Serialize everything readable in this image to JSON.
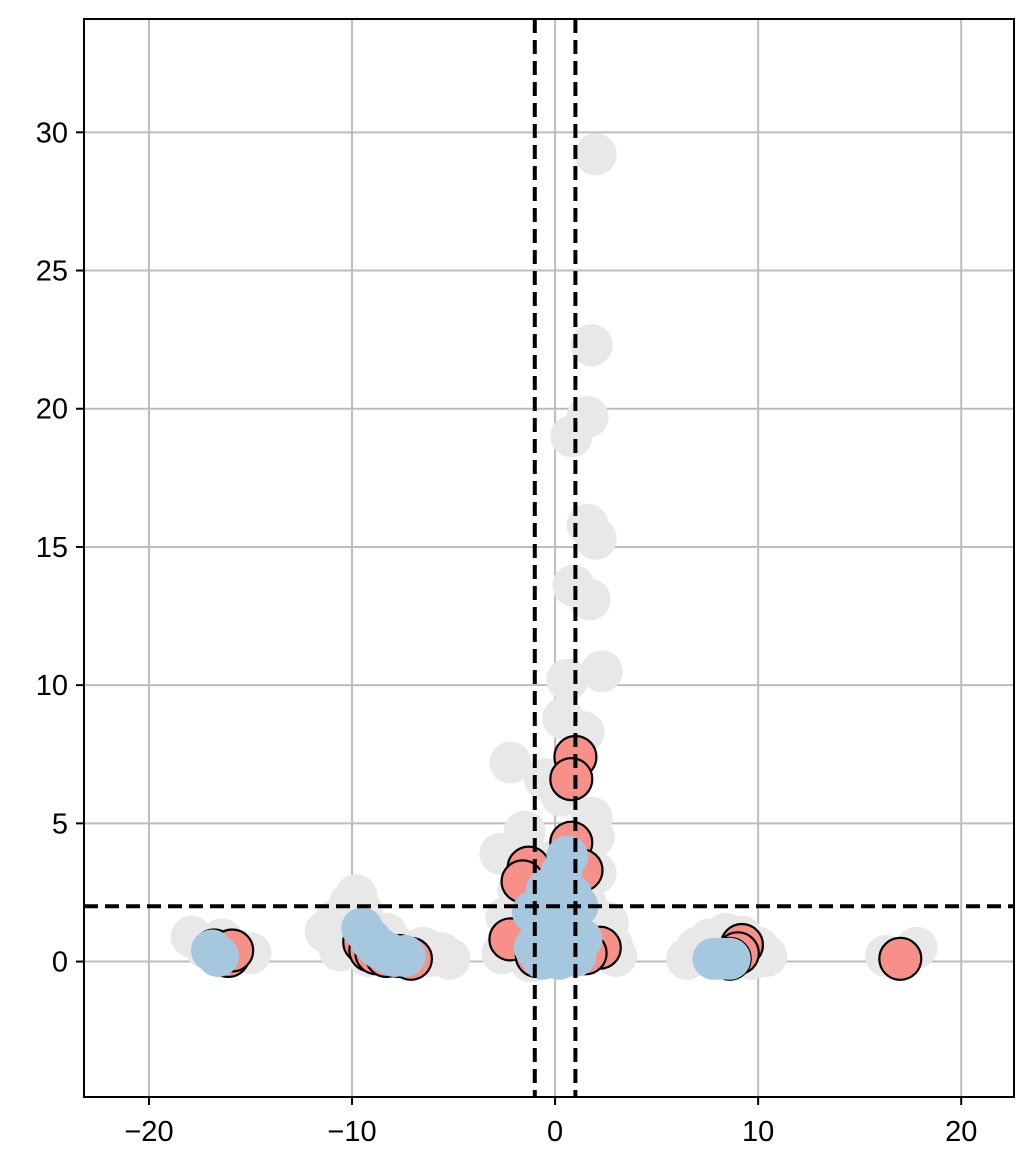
{
  "chart_data": {
    "type": "scatter",
    "title": "",
    "xlabel": "",
    "ylabel": "",
    "xlim": [
      -23.2,
      22.6
    ],
    "ylim": [
      -4.9,
      34.1
    ],
    "xticks": [
      -20,
      -10,
      0,
      10,
      20
    ],
    "yticks": [
      0,
      5,
      10,
      15,
      20,
      25,
      30
    ],
    "xtick_labels": [
      "−20",
      "−10",
      "0",
      "10",
      "20"
    ],
    "ytick_labels": [
      "0",
      "5",
      "10",
      "15",
      "20",
      "25",
      "30"
    ],
    "grid": true,
    "legend": "none",
    "threshold_lines": {
      "x": [
        -1,
        1
      ],
      "y": [
        2
      ]
    },
    "series": [
      {
        "color": "#e8e8e8",
        "outlined": false,
        "points": [
          [
            2.0,
            29.2
          ],
          [
            1.8,
            22.3
          ],
          [
            1.6,
            19.7
          ],
          [
            0.8,
            19.0
          ],
          [
            1.6,
            15.8
          ],
          [
            2.0,
            15.3
          ],
          [
            0.9,
            13.6
          ],
          [
            1.7,
            13.1
          ],
          [
            2.3,
            10.5
          ],
          [
            0.6,
            10.2
          ],
          [
            0.4,
            8.8
          ],
          [
            1.4,
            8.3
          ],
          [
            -2.2,
            7.2
          ],
          [
            -0.5,
            6.6
          ],
          [
            0.3,
            6.0
          ],
          [
            1.8,
            5.2
          ],
          [
            -1.5,
            4.7
          ],
          [
            0.7,
            4.2
          ],
          [
            1.9,
            4.5
          ],
          [
            -2.7,
            3.9
          ],
          [
            -0.3,
            3.6
          ],
          [
            2.0,
            3.2
          ],
          [
            -1.8,
            2.6
          ],
          [
            0.5,
            2.8
          ],
          [
            1.5,
            2.1
          ],
          [
            -2.4,
            1.6
          ],
          [
            2.6,
            1.4
          ],
          [
            -0.8,
            1.2
          ],
          [
            2.8,
            0.6
          ],
          [
            -2.6,
            0.3
          ],
          [
            3.0,
            0.2
          ],
          [
            -1.2,
            0.0
          ],
          [
            -10.1,
            2.1
          ],
          [
            -9.8,
            2.4
          ],
          [
            -11.3,
            1.1
          ],
          [
            -10.8,
            1.5
          ],
          [
            -9.5,
            1.8
          ],
          [
            -8.3,
            1.0
          ],
          [
            -7.9,
            0.6
          ],
          [
            -6.5,
            0.5
          ],
          [
            -6.1,
            0.2
          ],
          [
            -5.6,
            0.3
          ],
          [
            -5.2,
            0.1
          ],
          [
            -10.6,
            0.4
          ],
          [
            -9.2,
            0.2
          ],
          [
            -17.9,
            0.9
          ],
          [
            -17.2,
            0.5
          ],
          [
            -15.6,
            0.4
          ],
          [
            -15.0,
            0.3
          ],
          [
            -16.4,
            0.8
          ],
          [
            6.5,
            0.1
          ],
          [
            7.0,
            0.5
          ],
          [
            7.6,
            0.8
          ],
          [
            8.4,
            1.0
          ],
          [
            9.2,
            0.9
          ],
          [
            10.0,
            0.5
          ],
          [
            10.4,
            0.2
          ],
          [
            9.7,
            0.1
          ],
          [
            16.3,
            0.2
          ],
          [
            17.8,
            0.5
          ],
          [
            16.9,
            0.1
          ]
        ]
      },
      {
        "color": "#f8908a",
        "outlined": true,
        "points": [
          [
            1.0,
            7.4
          ],
          [
            0.8,
            6.6
          ],
          [
            0.8,
            4.3
          ],
          [
            -1.3,
            3.4
          ],
          [
            1.3,
            3.3
          ],
          [
            -1.6,
            2.9
          ],
          [
            -2.2,
            0.8
          ],
          [
            2.2,
            0.5
          ],
          [
            1.5,
            0.3
          ],
          [
            -0.9,
            0.2
          ],
          [
            -9.4,
            0.7
          ],
          [
            -9.1,
            0.4
          ],
          [
            -8.8,
            0.3
          ],
          [
            -8.3,
            0.2
          ],
          [
            -7.7,
            0.2
          ],
          [
            -7.1,
            0.1
          ],
          [
            -16.8,
            0.4
          ],
          [
            -16.4,
            0.3
          ],
          [
            -16.1,
            0.2
          ],
          [
            -15.9,
            0.4
          ],
          [
            9.2,
            0.6
          ],
          [
            9.0,
            0.3
          ],
          [
            8.6,
            0.1
          ],
          [
            17.0,
            0.1
          ]
        ]
      },
      {
        "color": "#a6c8df",
        "outlined": false,
        "points": [
          [
            0.6,
            3.8
          ],
          [
            0.3,
            3.2
          ],
          [
            -0.4,
            2.6
          ],
          [
            0.8,
            2.4
          ],
          [
            1.1,
            2.0
          ],
          [
            -1.1,
            1.8
          ],
          [
            0.5,
            1.5
          ],
          [
            -0.2,
            1.4
          ],
          [
            0.9,
            1.1
          ],
          [
            -0.7,
            0.9
          ],
          [
            1.3,
            0.8
          ],
          [
            0.1,
            0.6
          ],
          [
            -1.0,
            0.5
          ],
          [
            0.6,
            0.4
          ],
          [
            -0.4,
            0.3
          ],
          [
            1.0,
            0.2
          ],
          [
            0.2,
            0.1
          ],
          [
            -0.6,
            0.1
          ],
          [
            -9.5,
            1.2
          ],
          [
            -9.1,
            0.8
          ],
          [
            -8.7,
            0.5
          ],
          [
            -8.2,
            0.3
          ],
          [
            -7.9,
            0.2
          ],
          [
            -7.4,
            0.2
          ],
          [
            -16.6,
            0.2
          ],
          [
            -16.9,
            0.4
          ],
          [
            7.8,
            0.1
          ],
          [
            8.2,
            0.1
          ],
          [
            8.6,
            0.1
          ]
        ]
      }
    ]
  }
}
